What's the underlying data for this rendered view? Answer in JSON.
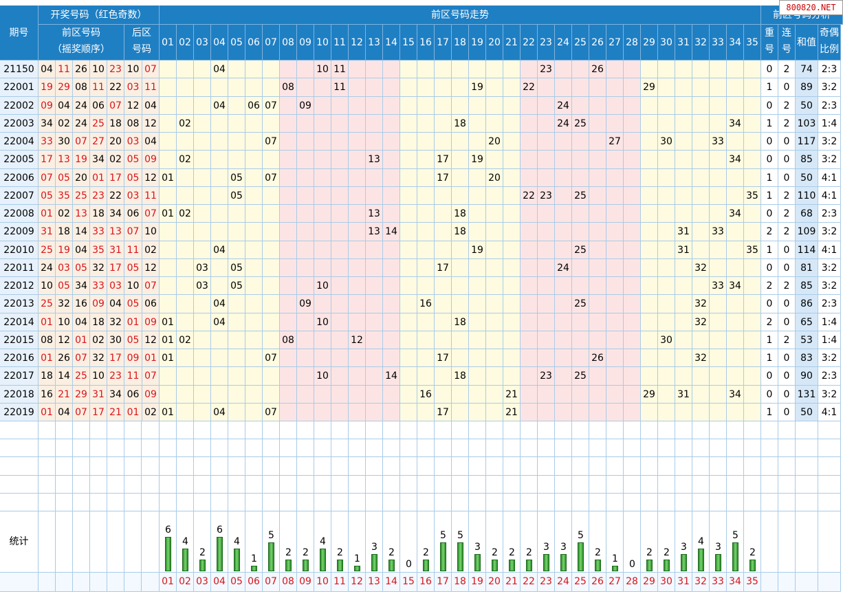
{
  "header": {
    "period_label": "期号",
    "draw_group": "开奖号码（红色奇数）",
    "front_label": "前区号码",
    "front_sub": "（摇奖顺序）",
    "back_label": "后区",
    "back_sub": "号码",
    "trend_label": "前区号码走势",
    "analysis_label": "前区号码分析",
    "repeat_label": [
      "重",
      "号"
    ],
    "consec_label": [
      "连",
      "号"
    ],
    "sum_label": "和值",
    "ratio_label": [
      "奇偶",
      "比例"
    ]
  },
  "numbers": [
    "01",
    "02",
    "03",
    "04",
    "05",
    "06",
    "07",
    "08",
    "09",
    "10",
    "11",
    "12",
    "13",
    "14",
    "15",
    "16",
    "17",
    "18",
    "19",
    "20",
    "21",
    "22",
    "23",
    "24",
    "25",
    "26",
    "27",
    "28",
    "29",
    "30",
    "31",
    "32",
    "33",
    "34",
    "35"
  ],
  "rows": [
    {
      "period": "21150",
      "front": [
        "04",
        "11",
        "26",
        "10",
        "23"
      ],
      "back": [
        "10",
        "07"
      ],
      "repeat": "0",
      "consec": "2",
      "sum": "74",
      "ratio": "2:3"
    },
    {
      "period": "22001",
      "front": [
        "19",
        "29",
        "08",
        "11",
        "22"
      ],
      "back": [
        "03",
        "11"
      ],
      "repeat": "1",
      "consec": "0",
      "sum": "89",
      "ratio": "3:2"
    },
    {
      "period": "22002",
      "front": [
        "09",
        "04",
        "24",
        "06",
        "07"
      ],
      "back": [
        "12",
        "04"
      ],
      "repeat": "0",
      "consec": "2",
      "sum": "50",
      "ratio": "2:3"
    },
    {
      "period": "22003",
      "front": [
        "34",
        "02",
        "24",
        "25",
        "18"
      ],
      "back": [
        "08",
        "12"
      ],
      "repeat": "1",
      "consec": "2",
      "sum": "103",
      "ratio": "1:4"
    },
    {
      "period": "22004",
      "front": [
        "33",
        "30",
        "07",
        "27",
        "20"
      ],
      "back": [
        "03",
        "04"
      ],
      "repeat": "0",
      "consec": "0",
      "sum": "117",
      "ratio": "3:2"
    },
    {
      "period": "22005",
      "front": [
        "17",
        "13",
        "19",
        "34",
        "02"
      ],
      "back": [
        "05",
        "09"
      ],
      "repeat": "0",
      "consec": "0",
      "sum": "85",
      "ratio": "3:2"
    },
    {
      "period": "22006",
      "front": [
        "07",
        "05",
        "20",
        "01",
        "17"
      ],
      "back": [
        "05",
        "12"
      ],
      "repeat": "1",
      "consec": "0",
      "sum": "50",
      "ratio": "4:1"
    },
    {
      "period": "22007",
      "front": [
        "05",
        "35",
        "25",
        "23",
        "22"
      ],
      "back": [
        "03",
        "11"
      ],
      "repeat": "1",
      "consec": "2",
      "sum": "110",
      "ratio": "4:1"
    },
    {
      "period": "22008",
      "front": [
        "01",
        "02",
        "13",
        "18",
        "34"
      ],
      "back": [
        "06",
        "07"
      ],
      "repeat": "0",
      "consec": "2",
      "sum": "68",
      "ratio": "2:3"
    },
    {
      "period": "22009",
      "front": [
        "31",
        "18",
        "14",
        "33",
        "13"
      ],
      "back": [
        "07",
        "10"
      ],
      "repeat": "2",
      "consec": "2",
      "sum": "109",
      "ratio": "3:2"
    },
    {
      "period": "22010",
      "front": [
        "25",
        "19",
        "04",
        "35",
        "31"
      ],
      "back": [
        "11",
        "02"
      ],
      "repeat": "1",
      "consec": "0",
      "sum": "114",
      "ratio": "4:1"
    },
    {
      "period": "22011",
      "front": [
        "24",
        "03",
        "05",
        "32",
        "17"
      ],
      "back": [
        "05",
        "12"
      ],
      "repeat": "0",
      "consec": "0",
      "sum": "81",
      "ratio": "3:2"
    },
    {
      "period": "22012",
      "front": [
        "10",
        "05",
        "34",
        "33",
        "03"
      ],
      "back": [
        "10",
        "07"
      ],
      "repeat": "2",
      "consec": "2",
      "sum": "85",
      "ratio": "3:2"
    },
    {
      "period": "22013",
      "front": [
        "25",
        "32",
        "16",
        "09",
        "04"
      ],
      "back": [
        "05",
        "06"
      ],
      "repeat": "0",
      "consec": "0",
      "sum": "86",
      "ratio": "2:3"
    },
    {
      "period": "22014",
      "front": [
        "01",
        "10",
        "04",
        "18",
        "32"
      ],
      "back": [
        "01",
        "09"
      ],
      "repeat": "2",
      "consec": "0",
      "sum": "65",
      "ratio": "1:4"
    },
    {
      "period": "22015",
      "front": [
        "08",
        "12",
        "01",
        "02",
        "30"
      ],
      "back": [
        "05",
        "12"
      ],
      "repeat": "1",
      "consec": "2",
      "sum": "53",
      "ratio": "1:4"
    },
    {
      "period": "22016",
      "front": [
        "01",
        "26",
        "07",
        "32",
        "17"
      ],
      "back": [
        "09",
        "01"
      ],
      "repeat": "1",
      "consec": "0",
      "sum": "83",
      "ratio": "3:2"
    },
    {
      "period": "22017",
      "front": [
        "18",
        "14",
        "25",
        "10",
        "23"
      ],
      "back": [
        "11",
        "07"
      ],
      "repeat": "0",
      "consec": "0",
      "sum": "90",
      "ratio": "2:3"
    },
    {
      "period": "22018",
      "front": [
        "16",
        "21",
        "29",
        "31",
        "34"
      ],
      "back": [
        "06",
        "09"
      ],
      "repeat": "0",
      "consec": "0",
      "sum": "131",
      "ratio": "3:2"
    },
    {
      "period": "22019",
      "front": [
        "01",
        "04",
        "07",
        "17",
        "21"
      ],
      "back": [
        "01",
        "02"
      ],
      "repeat": "1",
      "consec": "0",
      "sum": "50",
      "ratio": "4:1"
    }
  ],
  "stats": {
    "label": "统计",
    "counts": [
      6,
      4,
      2,
      6,
      4,
      1,
      5,
      2,
      2,
      4,
      2,
      1,
      3,
      2,
      0,
      2,
      5,
      5,
      3,
      2,
      2,
      2,
      3,
      3,
      5,
      2,
      1,
      0,
      2,
      2,
      3,
      4,
      3,
      5,
      2
    ]
  },
  "watermark": "800820.NET"
}
